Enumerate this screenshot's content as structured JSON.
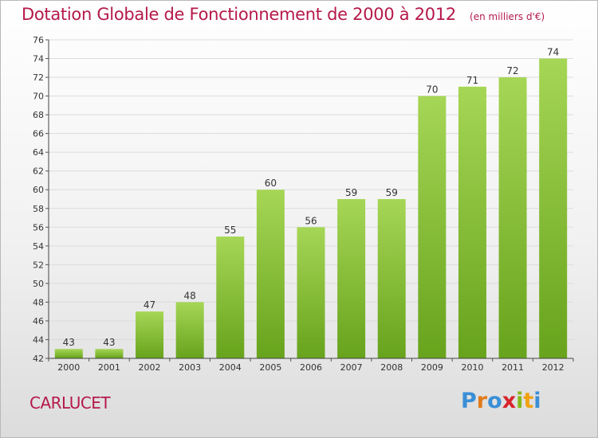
{
  "page": {
    "title": "Dotation Globale de Fonctionnement de 2000 à 2012",
    "unit": "(en milliers d'€)",
    "commune": "CARLUCET",
    "logo": {
      "letters": [
        "P",
        "r",
        "o",
        "x",
        "i",
        "t",
        "i"
      ],
      "colors": [
        "#3a8fd6",
        "#e07b1a",
        "#3a8fd6",
        "#d8232a",
        "#86b817",
        "#f2a20f",
        "#3a8fd6"
      ]
    }
  },
  "colors": {
    "title": "#b5194a",
    "bar_light": "#a6d656",
    "bar_dark": "#67a31c",
    "grid": "#dcdcdc"
  },
  "chart_data": {
    "type": "bar",
    "title": "Dotation Globale de Fonctionnement de 2000 à 2012",
    "subtitle": "(en milliers d'€)",
    "categories": [
      "2000",
      "2001",
      "2002",
      "2003",
      "2004",
      "2005",
      "2006",
      "2007",
      "2008",
      "2009",
      "2010",
      "2011",
      "2012"
    ],
    "values": [
      43,
      43,
      47,
      48,
      55,
      60,
      56,
      59,
      59,
      70,
      71,
      72,
      74
    ],
    "ylim": [
      42,
      76
    ],
    "yticks": [
      42,
      44,
      46,
      48,
      50,
      52,
      54,
      56,
      58,
      60,
      62,
      64,
      66,
      68,
      70,
      72,
      74,
      76
    ],
    "grid": true,
    "legend": "none"
  }
}
